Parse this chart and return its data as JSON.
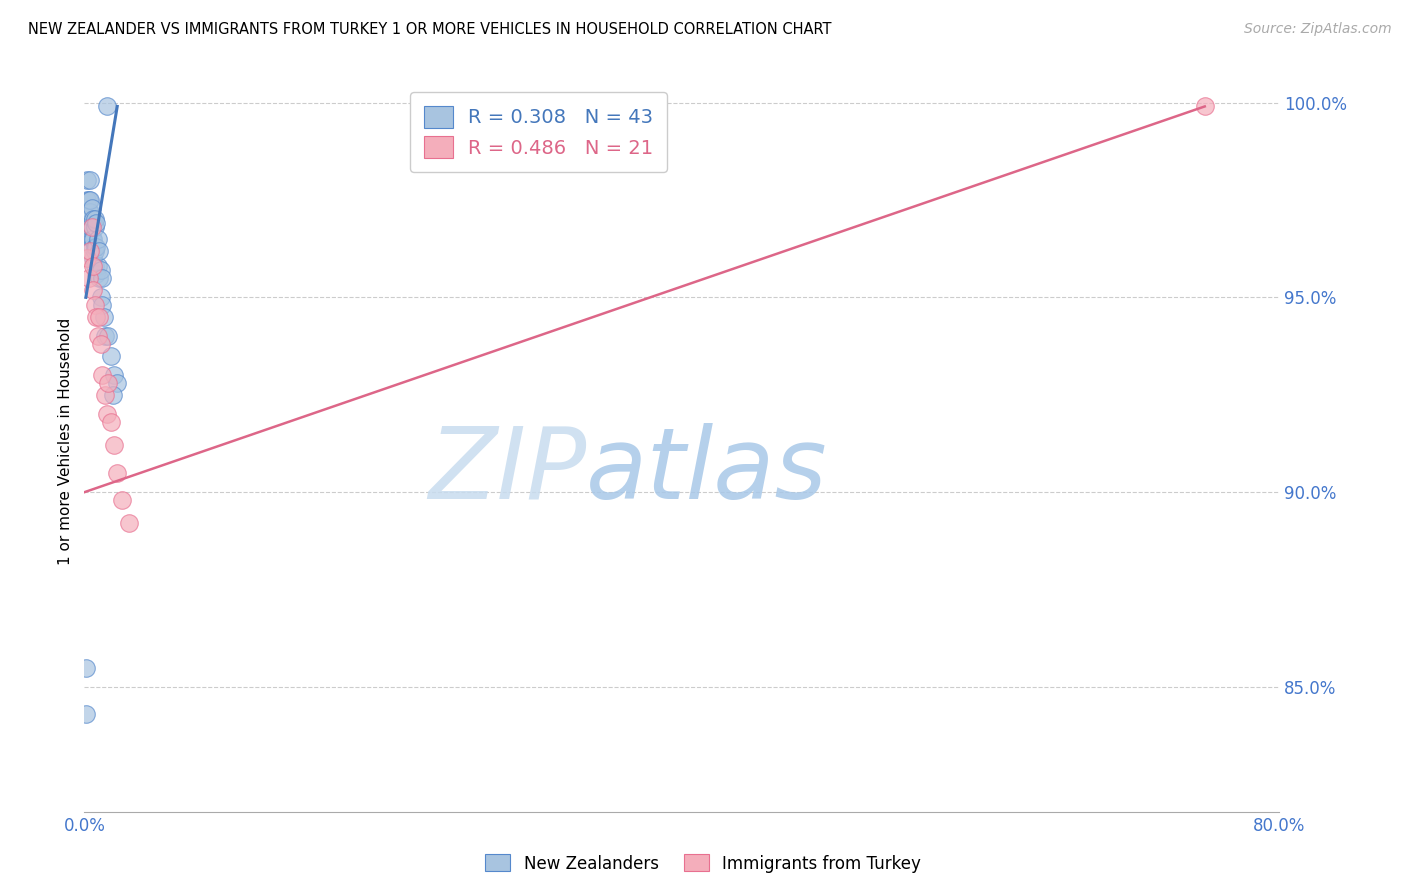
{
  "title": "NEW ZEALANDER VS IMMIGRANTS FROM TURKEY 1 OR MORE VEHICLES IN HOUSEHOLD CORRELATION CHART",
  "source": "Source: ZipAtlas.com",
  "ylabel": "1 or more Vehicles in Household",
  "xlim": [
    0.0,
    0.8
  ],
  "ylim": [
    0.818,
    1.008
  ],
  "xticks": [
    0.0,
    0.1,
    0.2,
    0.3,
    0.4,
    0.5,
    0.6,
    0.7,
    0.8
  ],
  "xticklabels": [
    "0.0%",
    "",
    "",
    "",
    "",
    "",
    "",
    "",
    "80.0%"
  ],
  "yticks": [
    0.85,
    0.9,
    0.95,
    1.0
  ],
  "yticklabels": [
    "85.0%",
    "90.0%",
    "95.0%",
    "100.0%"
  ],
  "blue_R": 0.308,
  "blue_N": 43,
  "pink_R": 0.486,
  "pink_N": 21,
  "blue_color": "#A8C4E0",
  "pink_color": "#F4AEBB",
  "blue_edge_color": "#5588CC",
  "pink_edge_color": "#E87090",
  "blue_line_color": "#4477BB",
  "pink_line_color": "#DD6688",
  "legend_label_blue": "New Zealanders",
  "legend_label_pink": "Immigrants from Turkey",
  "blue_x": [
    0.001,
    0.002,
    0.002,
    0.003,
    0.003,
    0.003,
    0.004,
    0.004,
    0.004,
    0.004,
    0.004,
    0.005,
    0.005,
    0.005,
    0.005,
    0.006,
    0.006,
    0.006,
    0.007,
    0.007,
    0.007,
    0.007,
    0.007,
    0.008,
    0.008,
    0.008,
    0.009,
    0.009,
    0.01,
    0.01,
    0.011,
    0.011,
    0.012,
    0.012,
    0.013,
    0.014,
    0.015,
    0.016,
    0.018,
    0.02,
    0.022,
    0.001,
    0.019
  ],
  "blue_y": [
    0.855,
    0.98,
    0.975,
    0.972,
    0.969,
    0.975,
    0.966,
    0.972,
    0.968,
    0.975,
    0.98,
    0.963,
    0.968,
    0.973,
    0.965,
    0.96,
    0.965,
    0.97,
    0.958,
    0.962,
    0.968,
    0.963,
    0.97,
    0.956,
    0.963,
    0.969,
    0.958,
    0.965,
    0.955,
    0.962,
    0.95,
    0.957,
    0.948,
    0.955,
    0.945,
    0.94,
    0.999,
    0.94,
    0.935,
    0.93,
    0.928,
    0.843,
    0.925
  ],
  "pink_x": [
    0.002,
    0.003,
    0.004,
    0.005,
    0.006,
    0.006,
    0.007,
    0.008,
    0.009,
    0.01,
    0.011,
    0.012,
    0.014,
    0.015,
    0.016,
    0.018,
    0.02,
    0.022,
    0.025,
    0.03,
    0.75
  ],
  "pink_y": [
    0.96,
    0.955,
    0.962,
    0.968,
    0.952,
    0.958,
    0.948,
    0.945,
    0.94,
    0.945,
    0.938,
    0.93,
    0.925,
    0.92,
    0.928,
    0.918,
    0.912,
    0.905,
    0.898,
    0.892,
    0.999
  ],
  "blue_trendline_x": [
    0.001,
    0.022
  ],
  "blue_trendline_y": [
    0.95,
    0.999
  ],
  "pink_trendline_x": [
    0.0,
    0.75
  ],
  "pink_trendline_y": [
    0.9,
    0.999
  ],
  "grid_color": "#CCCCCC",
  "figsize": [
    14.06,
    8.92
  ],
  "dpi": 100
}
